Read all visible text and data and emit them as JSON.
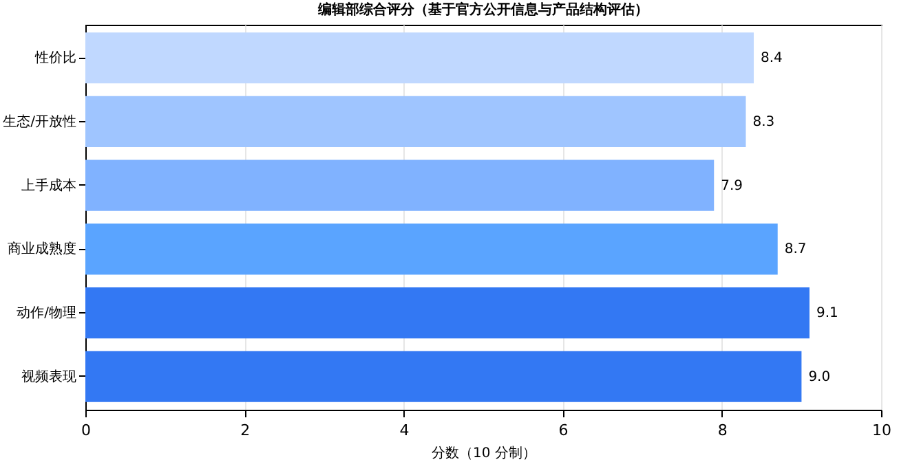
{
  "chart_data": {
    "type": "bar",
    "orientation": "horizontal",
    "title": "编辑部综合评分（基于官方公开信息与产品结构评估）",
    "xlabel": "分数（10 分制）",
    "categories": [
      "性价比",
      "生态/开放性",
      "上手成本",
      "商业成熟度",
      "动作/物理",
      "视频表现"
    ],
    "values": [
      8.4,
      8.3,
      7.9,
      8.7,
      9.1,
      9.0
    ],
    "value_labels": [
      "8.4",
      "8.3",
      "7.9",
      "8.7",
      "9.1",
      "9.0"
    ],
    "colors": [
      "#c0d8ff",
      "#9fc5ff",
      "#80b2ff",
      "#5aa4ff",
      "#3378f3",
      "#3378f3"
    ],
    "xlim": [
      0,
      10
    ],
    "xticks": [
      0,
      2,
      4,
      6,
      8,
      10
    ],
    "grid": "x"
  }
}
